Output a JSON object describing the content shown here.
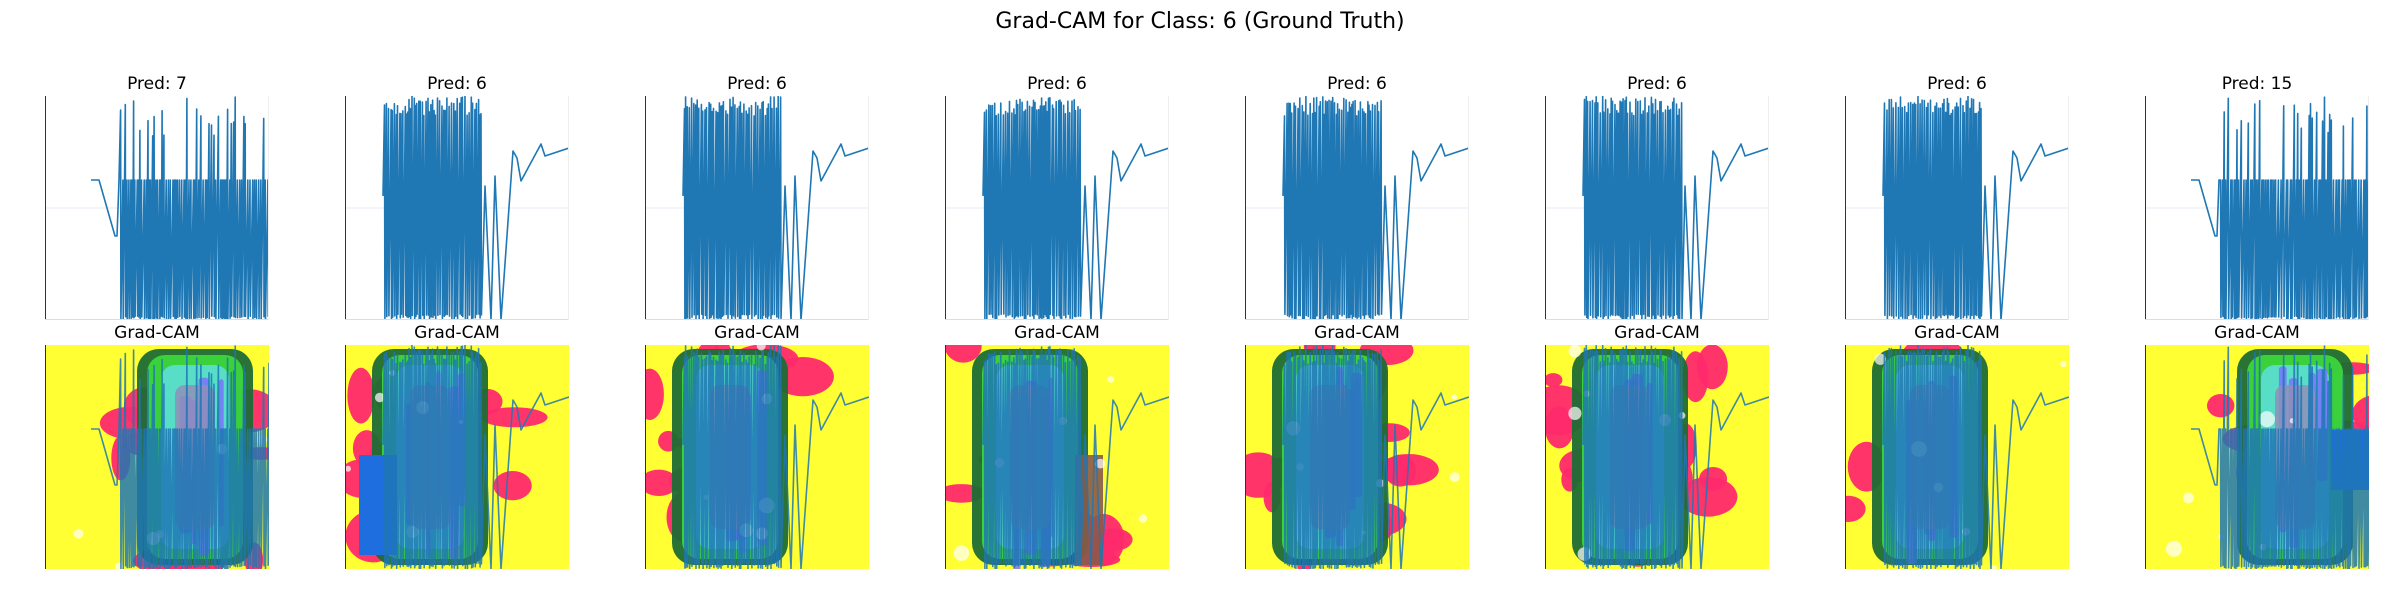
{
  "figure": {
    "title": "Grad-CAM for Class: 6 (Ground Truth)"
  },
  "colors": {
    "series": "#1f77b4",
    "cam_palette": [
      "#ffff33",
      "#ff2a6d",
      "#1d6b35",
      "#3cdc3c",
      "#5ee0e0",
      "#7a6cff",
      "#8f8fb8",
      "#1e6ee0",
      "#8a5a4a"
    ]
  },
  "chart_data": [
    {
      "type": "line",
      "row": "signal",
      "title": "Pred: 7",
      "grid": false,
      "axes_visible": "left-bottom-spines",
      "pattern": "dense-right"
    },
    {
      "type": "line",
      "row": "signal",
      "title": "Pred: 6",
      "grid": false,
      "axes_visible": "left-bottom-spines",
      "pattern": "dense-left"
    },
    {
      "type": "line",
      "row": "signal",
      "title": "Pred: 6",
      "grid": false,
      "axes_visible": "left-bottom-spines",
      "pattern": "dense-left"
    },
    {
      "type": "line",
      "row": "signal",
      "title": "Pred: 6",
      "grid": false,
      "axes_visible": "left-bottom-spines",
      "pattern": "dense-left"
    },
    {
      "type": "line",
      "row": "signal",
      "title": "Pred: 6",
      "grid": false,
      "axes_visible": "left-bottom-spines",
      "pattern": "dense-left"
    },
    {
      "type": "line",
      "row": "signal",
      "title": "Pred: 6",
      "grid": false,
      "axes_visible": "left-bottom-spines",
      "pattern": "dense-left"
    },
    {
      "type": "line",
      "row": "signal",
      "title": "Pred: 6",
      "grid": false,
      "axes_visible": "left-bottom-spines",
      "pattern": "dense-left"
    },
    {
      "type": "line",
      "row": "signal",
      "title": "Pred: 15",
      "grid": false,
      "axes_visible": "left-bottom-spines",
      "pattern": "dense-right"
    },
    {
      "type": "heatmap",
      "row": "gradcam",
      "title": "Grad-CAM",
      "overlay": "signal",
      "colormap": "rainbow-pastel"
    },
    {
      "type": "heatmap",
      "row": "gradcam",
      "title": "Grad-CAM",
      "overlay": "signal",
      "colormap": "rainbow-pastel"
    },
    {
      "type": "heatmap",
      "row": "gradcam",
      "title": "Grad-CAM",
      "overlay": "signal",
      "colormap": "rainbow-pastel"
    },
    {
      "type": "heatmap",
      "row": "gradcam",
      "title": "Grad-CAM",
      "overlay": "signal",
      "colormap": "rainbow-pastel"
    },
    {
      "type": "heatmap",
      "row": "gradcam",
      "title": "Grad-CAM",
      "overlay": "signal",
      "colormap": "rainbow-pastel"
    },
    {
      "type": "heatmap",
      "row": "gradcam",
      "title": "Grad-CAM",
      "overlay": "signal",
      "colormap": "rainbow-pastel"
    },
    {
      "type": "heatmap",
      "row": "gradcam",
      "title": "Grad-CAM",
      "overlay": "signal",
      "colormap": "rainbow-pastel"
    },
    {
      "type": "heatmap",
      "row": "gradcam",
      "title": "Grad-CAM",
      "overlay": "signal",
      "colormap": "rainbow-pastel"
    }
  ]
}
